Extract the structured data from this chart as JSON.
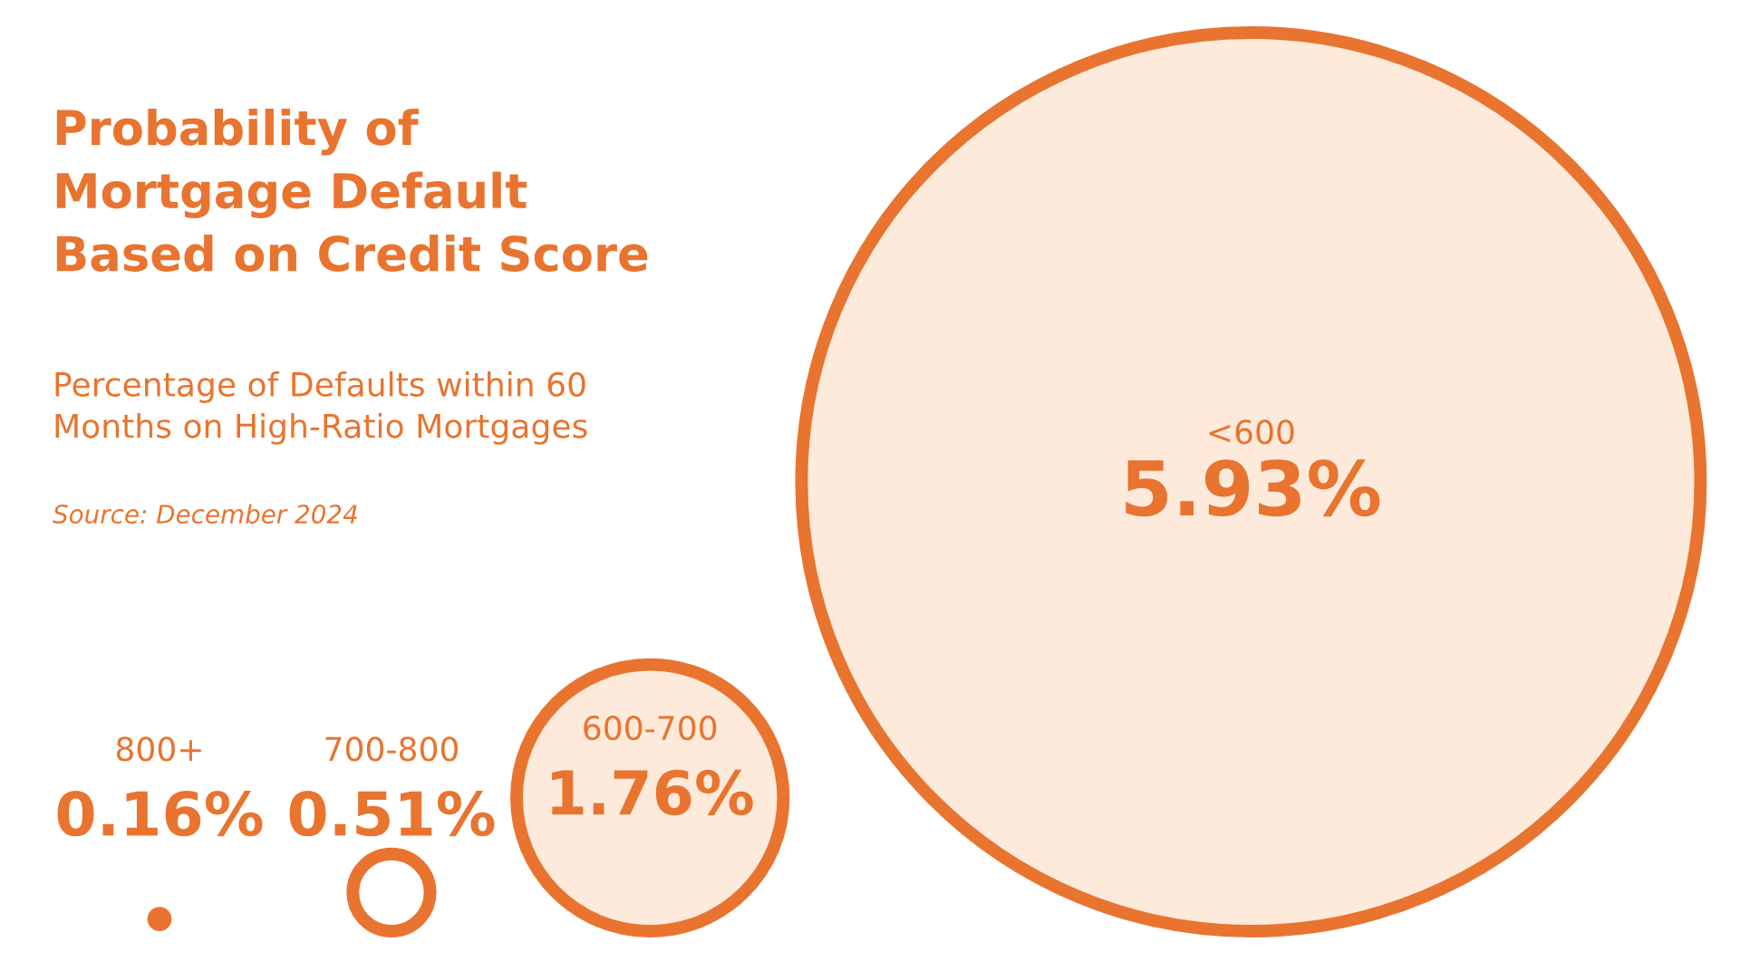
{
  "chart_data": {
    "type": "other",
    "title": "Probability of\nMortgage Default\nBased on Credit Score",
    "subtitle": "Percentage of Defaults within 60\nMonths on High-Ratio Mortgages",
    "annotations": [
      "Source: December 2024"
    ],
    "categories": [
      "800+",
      "700-800",
      "600-700",
      "<600"
    ],
    "values": [
      0.16,
      0.51,
      1.76,
      5.93
    ],
    "value_labels": [
      "0.16%",
      "0.51%",
      "1.76%",
      "5.93%"
    ],
    "color": "#e8742f",
    "colors": [
      "#e8742f",
      "#ffffff",
      "#fdeadb",
      "#fdeadb"
    ]
  }
}
